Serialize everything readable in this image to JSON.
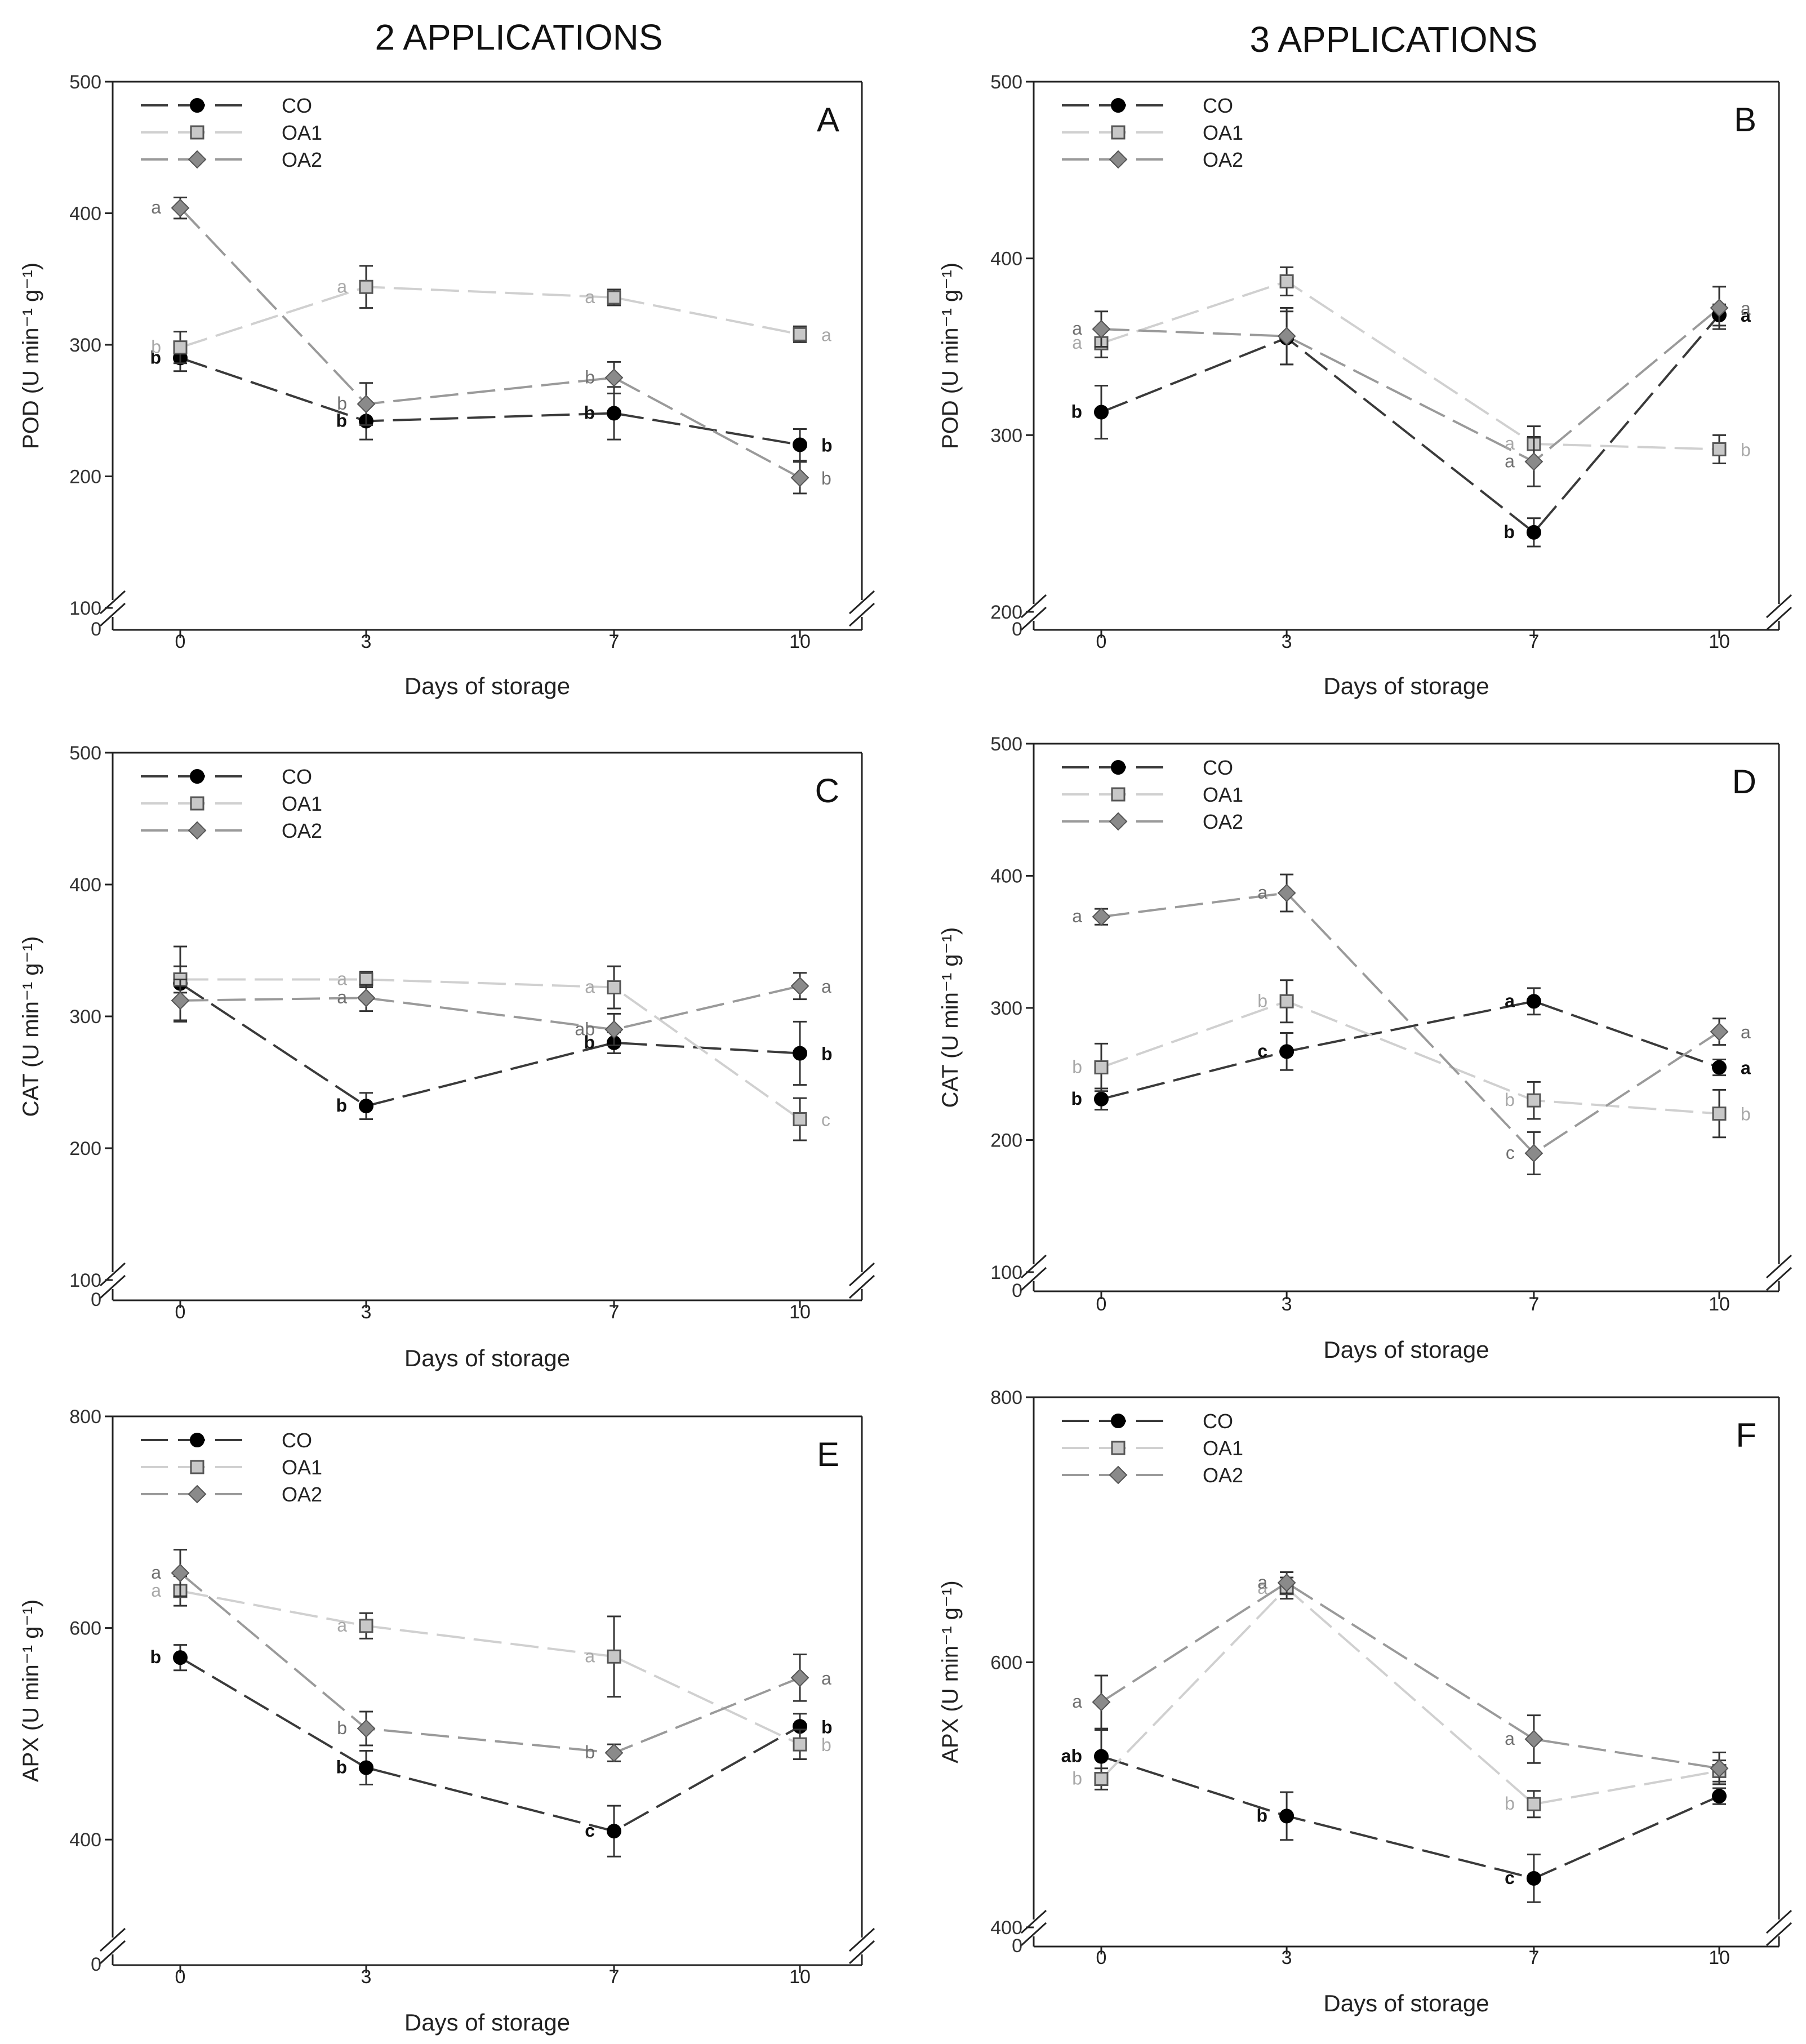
{
  "column_titles": [
    "2 APPLICATIONS",
    "3 APPLICATIONS"
  ],
  "legend_labels": [
    "CO",
    "OA1",
    "OA2"
  ],
  "chart_data": [
    {
      "id": "A",
      "type": "line",
      "panel_label": "A",
      "xlabel": "Days of storage",
      "ylabel": "POD (U min⁻¹ g⁻¹)",
      "x": [
        0,
        3,
        7,
        10
      ],
      "x_ticks": [
        "0",
        "3",
        "7",
        "10"
      ],
      "y_ticks": [
        100,
        200,
        300,
        400,
        500
      ],
      "ylim": [
        100,
        500
      ],
      "y_zero_label": "0",
      "series": [
        {
          "name": "CO",
          "values": [
            290,
            242,
            248,
            224
          ],
          "errors": [
            10,
            14,
            20,
            12
          ],
          "letters": [
            "b",
            "b",
            "b",
            "b"
          ]
        },
        {
          "name": "OA1",
          "values": [
            298,
            344,
            336,
            308
          ],
          "errors": [
            12,
            16,
            6,
            6
          ],
          "letters": [
            "b",
            "a",
            "a",
            "a"
          ]
        },
        {
          "name": "OA2",
          "values": [
            404,
            255,
            275,
            199
          ],
          "errors": [
            8,
            16,
            12,
            12
          ],
          "letters": [
            "a",
            "b",
            "b",
            "b"
          ]
        }
      ]
    },
    {
      "id": "B",
      "type": "line",
      "panel_label": "B",
      "xlabel": "Days of storage",
      "ylabel": "POD (U min⁻¹ g⁻¹)",
      "x": [
        0,
        3,
        7,
        10
      ],
      "x_ticks": [
        "0",
        "3",
        "7",
        "10"
      ],
      "y_ticks": [
        200,
        300,
        400,
        500
      ],
      "ylim": [
        200,
        500
      ],
      "y_zero_label": "0",
      "series": [
        {
          "name": "CO",
          "values": [
            313,
            355,
            245,
            368
          ],
          "errors": [
            15,
            15,
            8,
            6
          ],
          "letters": [
            "b",
            "",
            "b",
            "a"
          ]
        },
        {
          "name": "OA1",
          "values": [
            352,
            387,
            295,
            292
          ],
          "errors": [
            8,
            8,
            10,
            8
          ],
          "letters": [
            "a",
            "",
            "a",
            "b"
          ]
        },
        {
          "name": "OA2",
          "values": [
            360,
            356,
            285,
            372
          ],
          "errors": [
            10,
            16,
            14,
            12
          ],
          "letters": [
            "a",
            "",
            "a",
            "a"
          ]
        }
      ]
    },
    {
      "id": "C",
      "type": "line",
      "panel_label": "C",
      "xlabel": "Days of storage",
      "ylabel": "CAT (U min⁻¹ g⁻¹)",
      "x": [
        0,
        3,
        7,
        10
      ],
      "x_ticks": [
        "0",
        "3",
        "7",
        "10"
      ],
      "y_ticks": [
        100,
        200,
        300,
        400,
        500
      ],
      "ylim": [
        100,
        500
      ],
      "y_zero_label": "0",
      "series": [
        {
          "name": "CO",
          "values": [
            325,
            232,
            280,
            272
          ],
          "errors": [
            28,
            10,
            8,
            24
          ],
          "letters": [
            "",
            "b",
            "b",
            "b"
          ]
        },
        {
          "name": "OA1",
          "values": [
            328,
            328,
            322,
            222
          ],
          "errors": [
            10,
            6,
            16,
            16
          ],
          "letters": [
            "",
            "a",
            "a",
            "c"
          ]
        },
        {
          "name": "OA2",
          "values": [
            312,
            314,
            290,
            323
          ],
          "errors": [
            16,
            10,
            12,
            10
          ],
          "letters": [
            "",
            "a",
            "ab",
            "a"
          ]
        }
      ]
    },
    {
      "id": "D",
      "type": "line",
      "panel_label": "D",
      "xlabel": "Days of storage",
      "ylabel": "CAT (U min⁻¹ g⁻¹)",
      "x": [
        0,
        3,
        7,
        10
      ],
      "x_ticks": [
        "0",
        "3",
        "7",
        "10"
      ],
      "y_ticks": [
        100,
        200,
        300,
        400,
        500
      ],
      "ylim": [
        100,
        500
      ],
      "y_zero_label": "0",
      "series": [
        {
          "name": "CO",
          "values": [
            231,
            267,
            305,
            255
          ],
          "errors": [
            8,
            14,
            10,
            6
          ],
          "letters": [
            "b",
            "c",
            "a",
            "a"
          ]
        },
        {
          "name": "OA1",
          "values": [
            255,
            305,
            230,
            220
          ],
          "errors": [
            18,
            16,
            14,
            18
          ],
          "letters": [
            "b",
            "b",
            "b",
            "b"
          ]
        },
        {
          "name": "OA2",
          "values": [
            369,
            387,
            190,
            282
          ],
          "errors": [
            6,
            14,
            16,
            10
          ],
          "letters": [
            "a",
            "a",
            "c",
            "a"
          ]
        }
      ]
    },
    {
      "id": "E",
      "type": "line",
      "panel_label": "E",
      "xlabel": "Days of storage",
      "ylabel": "APX (U min⁻¹ g⁻¹)",
      "x": [
        0,
        3,
        7,
        10
      ],
      "x_ticks": [
        "0",
        "3",
        "7",
        "10"
      ],
      "y_ticks": [
        400,
        600,
        800
      ],
      "ylim": [
        300,
        800
      ],
      "y_zero_label": "0",
      "series": [
        {
          "name": "CO",
          "values": [
            572,
            468,
            408,
            507
          ],
          "errors": [
            12,
            16,
            24,
            12
          ],
          "letters": [
            "b",
            "b",
            "c",
            "b"
          ]
        },
        {
          "name": "OA1",
          "values": [
            635,
            602,
            573,
            490
          ],
          "errors": [
            14,
            12,
            38,
            14
          ],
          "letters": [
            "a",
            "a",
            "a",
            "b"
          ]
        },
        {
          "name": "OA2",
          "values": [
            652,
            505,
            482,
            553
          ],
          "errors": [
            22,
            16,
            8,
            22
          ],
          "letters": [
            "a",
            "b",
            "b",
            "a"
          ]
        }
      ]
    },
    {
      "id": "F",
      "type": "line",
      "panel_label": "F",
      "xlabel": "Days of storage",
      "ylabel": "APX (U min⁻¹ g⁻¹)",
      "x": [
        0,
        3,
        7,
        10
      ],
      "x_ticks": [
        "0",
        "3",
        "7",
        "10"
      ],
      "y_ticks": [
        400,
        600,
        800
      ],
      "ylim": [
        400,
        800
      ],
      "y_zero_label": "0",
      "series": [
        {
          "name": "CO",
          "values": [
            529,
            484,
            437,
            499
          ],
          "errors": [
            20,
            18,
            18,
            6
          ],
          "letters": [
            "ab",
            "b",
            "c",
            ""
          ]
        },
        {
          "name": "OA1",
          "values": [
            512,
            656,
            493,
            518
          ],
          "errors": [
            8,
            8,
            10,
            8
          ],
          "letters": [
            "b",
            "a",
            "b",
            ""
          ]
        },
        {
          "name": "OA2",
          "values": [
            570,
            660,
            542,
            520
          ],
          "errors": [
            20,
            8,
            18,
            12
          ],
          "letters": [
            "a",
            "a",
            "a",
            ""
          ]
        }
      ]
    }
  ]
}
